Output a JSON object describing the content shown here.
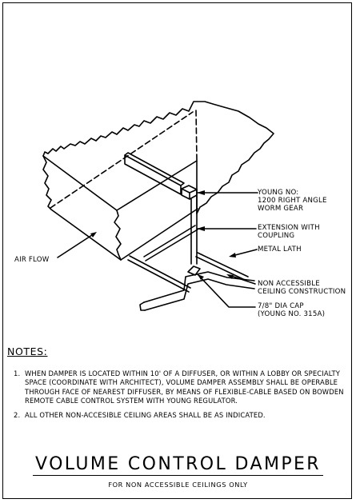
{
  "drawing": {
    "callouts": {
      "worm_gear": "YOUNG NO:\n1200 RIGHT ANGLE\nWORM GEAR",
      "extension": "EXTENSION WITH\nCOUPLING",
      "metal_lath": "METAL LATH",
      "ceiling": "NON ACCESSIBLE\nCEILING CONSTRUCTION",
      "cap": "7/8\" DIA CAP\n(YOUNG No. 315A)",
      "air_flow": "AIR FLOW"
    }
  },
  "notes": {
    "title": "NOTES:",
    "items": [
      {
        "num": "1.",
        "text": "WHEN DAMPER IS LOCATED WITHIN 10' OF A DIFFUSER, OR WITHIN A LOBBY OR SPECIALTY SPACE (COORDINATE WITH ARCHITECT), VOLUME DAMPER ASSEMBLY SHALL BE OPERABLE THROUGH FACE OF NEAREST DIFFUSER, BY MEANS OF FLEXIBLE-CABLE BASED ON BOWDEN REMOTE CABLE CONTROL SYSTEM WITH YOUNG REGULATOR."
      },
      {
        "num": "2.",
        "text": "ALL OTHER NON-ACCESIBLE CEILING AREAS SHALL BE AS INDICATED."
      }
    ]
  },
  "title_block": {
    "title": "VOLUME CONTROL DAMPER",
    "subtitle": "FOR NON ACCESSIBLE CEILINGS ONLY"
  }
}
